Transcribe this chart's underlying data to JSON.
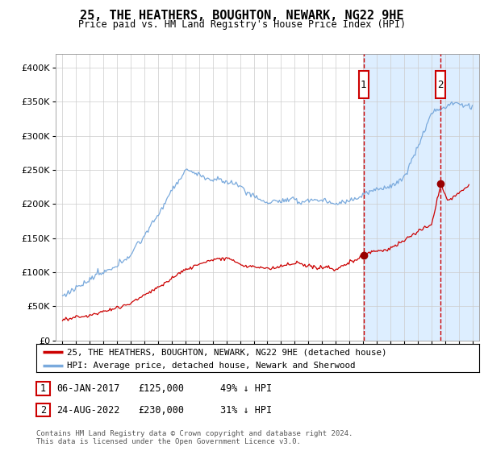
{
  "title": "25, THE HEATHERS, BOUGHTON, NEWARK, NG22 9HE",
  "subtitle": "Price paid vs. HM Land Registry's House Price Index (HPI)",
  "hpi_label": "HPI: Average price, detached house, Newark and Sherwood",
  "property_label": "25, THE HEATHERS, BOUGHTON, NEWARK, NG22 9HE (detached house)",
  "footnote": "Contains HM Land Registry data © Crown copyright and database right 2024.\nThis data is licensed under the Open Government Licence v3.0.",
  "sale1_date": "06-JAN-2017",
  "sale1_price": 125000,
  "sale1_label": "49% ↓ HPI",
  "sale2_date": "24-AUG-2022",
  "sale2_price": 230000,
  "sale2_label": "31% ↓ HPI",
  "hpi_color": "#7aaadd",
  "property_color": "#cc0000",
  "sale_marker_color": "#990000",
  "background_color": "#ffffff",
  "plot_bg_color": "#ffffff",
  "shade_color": "#ddeeff",
  "ylim": [
    0,
    420000
  ],
  "yticks": [
    0,
    50000,
    100000,
    150000,
    200000,
    250000,
    300000,
    350000,
    400000
  ],
  "x_start_year": 1995,
  "x_end_year": 2025,
  "sale1_x": 2017.04,
  "sale2_x": 2022.65,
  "grid_color": "#cccccc",
  "vline_color": "#cc0000",
  "box_color": "#cc0000",
  "title_fontsize": 11,
  "subtitle_fontsize": 9
}
